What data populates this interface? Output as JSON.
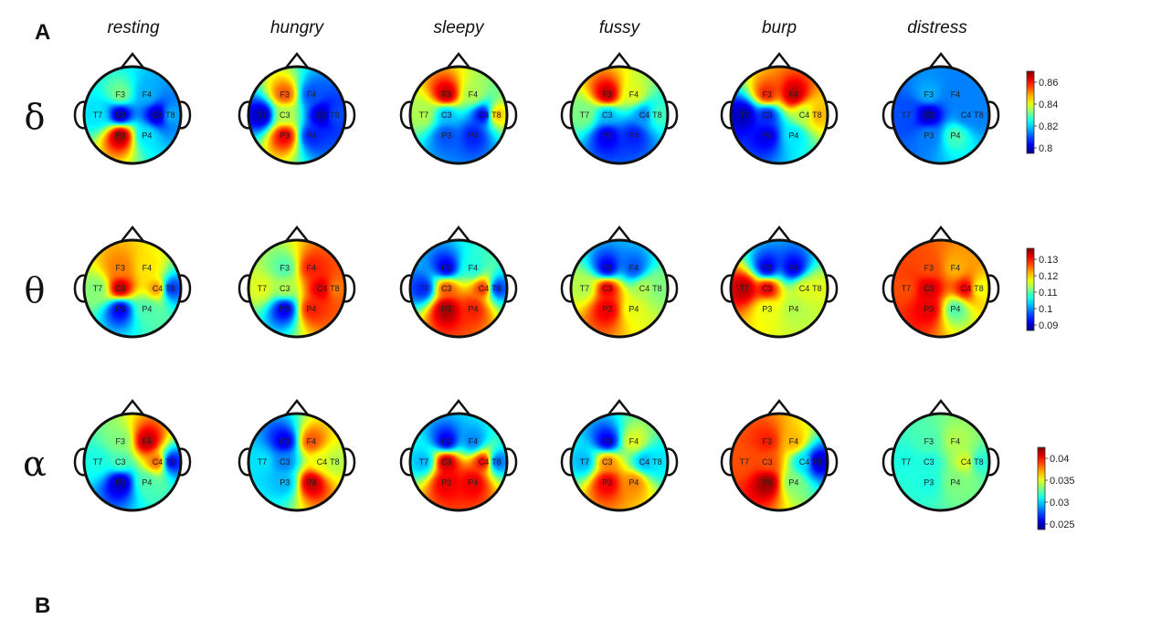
{
  "panel_labels": {
    "a": "A",
    "b": "B"
  },
  "conditions": [
    "resting",
    "hungry",
    "sleepy",
    "fussy",
    "burp",
    "distress"
  ],
  "bands": [
    {
      "symbol": "δ",
      "colorbar_ticks": [
        "0.86",
        "0.84",
        "0.82",
        "0.8"
      ],
      "maps": [
        {
          "F3": 0.5,
          "F4": 0.3,
          "C3": 0.05,
          "C4": 0.05,
          "T7": 0.35,
          "T8": 0.3,
          "P3": 0.98,
          "P4": 0.35
        },
        {
          "F3": 0.8,
          "F4": 0.2,
          "C3": 0.55,
          "C4": 0.05,
          "T7": 0.05,
          "T8": 0.2,
          "P3": 0.9,
          "P4": 0.15
        },
        {
          "F3": 0.95,
          "F4": 0.55,
          "C3": 0.3,
          "C4": 0.1,
          "T7": 0.55,
          "T8": 0.7,
          "P3": 0.2,
          "P4": 0.15
        },
        {
          "F3": 0.95,
          "F4": 0.6,
          "C3": 0.3,
          "C4": 0.25,
          "T7": 0.5,
          "T8": 0.45,
          "P3": 0.1,
          "P4": 0.15
        },
        {
          "F3": 0.85,
          "F4": 0.95,
          "C3": 0.15,
          "C4": 0.55,
          "T7": 0.05,
          "T8": 0.7,
          "P3": 0.1,
          "P4": 0.35
        },
        {
          "F3": 0.3,
          "F4": 0.25,
          "C3": 0.05,
          "C4": 0.25,
          "T7": 0.2,
          "T8": 0.25,
          "P3": 0.25,
          "P4": 0.45
        }
      ]
    },
    {
      "symbol": "θ",
      "colorbar_ticks": [
        "0.13",
        "0.12",
        "0.11",
        "0.1",
        "0.09"
      ],
      "maps": [
        {
          "F3": 0.75,
          "F4": 0.65,
          "C3": 0.95,
          "C4": 0.75,
          "T7": 0.5,
          "T8": 0.15,
          "P3": 0.1,
          "P4": 0.45
        },
        {
          "F3": 0.45,
          "F4": 0.85,
          "C3": 0.55,
          "C4": 0.92,
          "T7": 0.6,
          "T8": 0.75,
          "P3": 0.1,
          "P4": 0.85
        },
        {
          "F3": 0.1,
          "F4": 0.4,
          "C3": 0.8,
          "C4": 0.85,
          "T7": 0.15,
          "T8": 0.15,
          "P3": 0.97,
          "P4": 0.85
        },
        {
          "F3": 0.1,
          "F4": 0.2,
          "C3": 0.9,
          "C4": 0.55,
          "T7": 0.55,
          "T8": 0.5,
          "P3": 0.9,
          "P4": 0.6
        },
        {
          "F3": 0.1,
          "F4": 0.1,
          "C3": 0.9,
          "C4": 0.6,
          "T7": 0.95,
          "T8": 0.6,
          "P3": 0.6,
          "P4": 0.55
        },
        {
          "F3": 0.8,
          "F4": 0.7,
          "C3": 0.92,
          "C4": 0.9,
          "T7": 0.8,
          "T8": 0.6,
          "P3": 0.9,
          "P4": 0.45
        }
      ]
    },
    {
      "symbol": "α",
      "colorbar_ticks": [
        "0.04",
        "0.035",
        "0.03",
        "0.025"
      ],
      "maps": [
        {
          "F3": 0.5,
          "F4": 0.95,
          "C3": 0.45,
          "C4": 0.8,
          "T7": 0.4,
          "T8": 0.1,
          "P3": 0.05,
          "P4": 0.45
        },
        {
          "F3": 0.1,
          "F4": 0.8,
          "C3": 0.25,
          "C4": 0.6,
          "T7": 0.35,
          "T8": 0.55,
          "P3": 0.3,
          "P4": 0.95
        },
        {
          "F3": 0.1,
          "F4": 0.25,
          "C3": 0.95,
          "C4": 0.9,
          "T7": 0.3,
          "T8": 0.2,
          "P3": 0.9,
          "P4": 0.9
        },
        {
          "F3": 0.1,
          "F4": 0.6,
          "C3": 0.75,
          "C4": 0.3,
          "T7": 0.3,
          "T8": 0.35,
          "P3": 0.9,
          "P4": 0.75
        },
        {
          "F3": 0.85,
          "F4": 0.7,
          "C3": 0.8,
          "C4": 0.35,
          "T7": 0.8,
          "T8": 0.05,
          "P3": 0.98,
          "P4": 0.5
        },
        {
          "F3": 0.45,
          "F4": 0.55,
          "C3": 0.4,
          "C4": 0.6,
          "T7": 0.4,
          "T8": 0.4,
          "P3": 0.4,
          "P4": 0.5
        }
      ]
    }
  ]
}
